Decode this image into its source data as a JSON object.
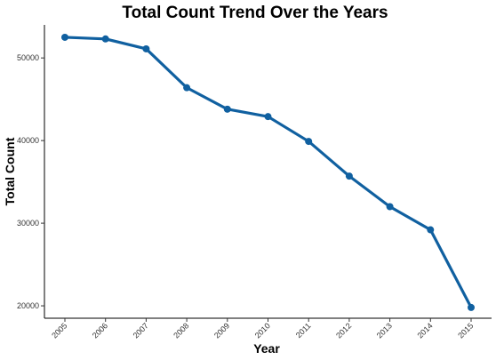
{
  "chart_data": {
    "type": "line",
    "title": "Total Count Trend Over the Years",
    "xlabel": "Year",
    "ylabel": "Total Count",
    "x": [
      "2005",
      "2006",
      "2007",
      "2008",
      "2009",
      "2010",
      "2011",
      "2012",
      "2013",
      "2014",
      "2015"
    ],
    "series": [
      {
        "values": [
          52500,
          52300,
          51100,
          46400,
          43800,
          42900,
          39900,
          35700,
          32000,
          29200,
          19800
        ]
      }
    ],
    "y_ticks": [
      20000,
      30000,
      40000,
      50000
    ],
    "y_tick_labels": [
      "20000",
      "30000",
      "40000",
      "50000"
    ],
    "ylim": [
      18500,
      54000
    ],
    "grid": false,
    "legend": "none",
    "line_color": "#1060a0"
  }
}
